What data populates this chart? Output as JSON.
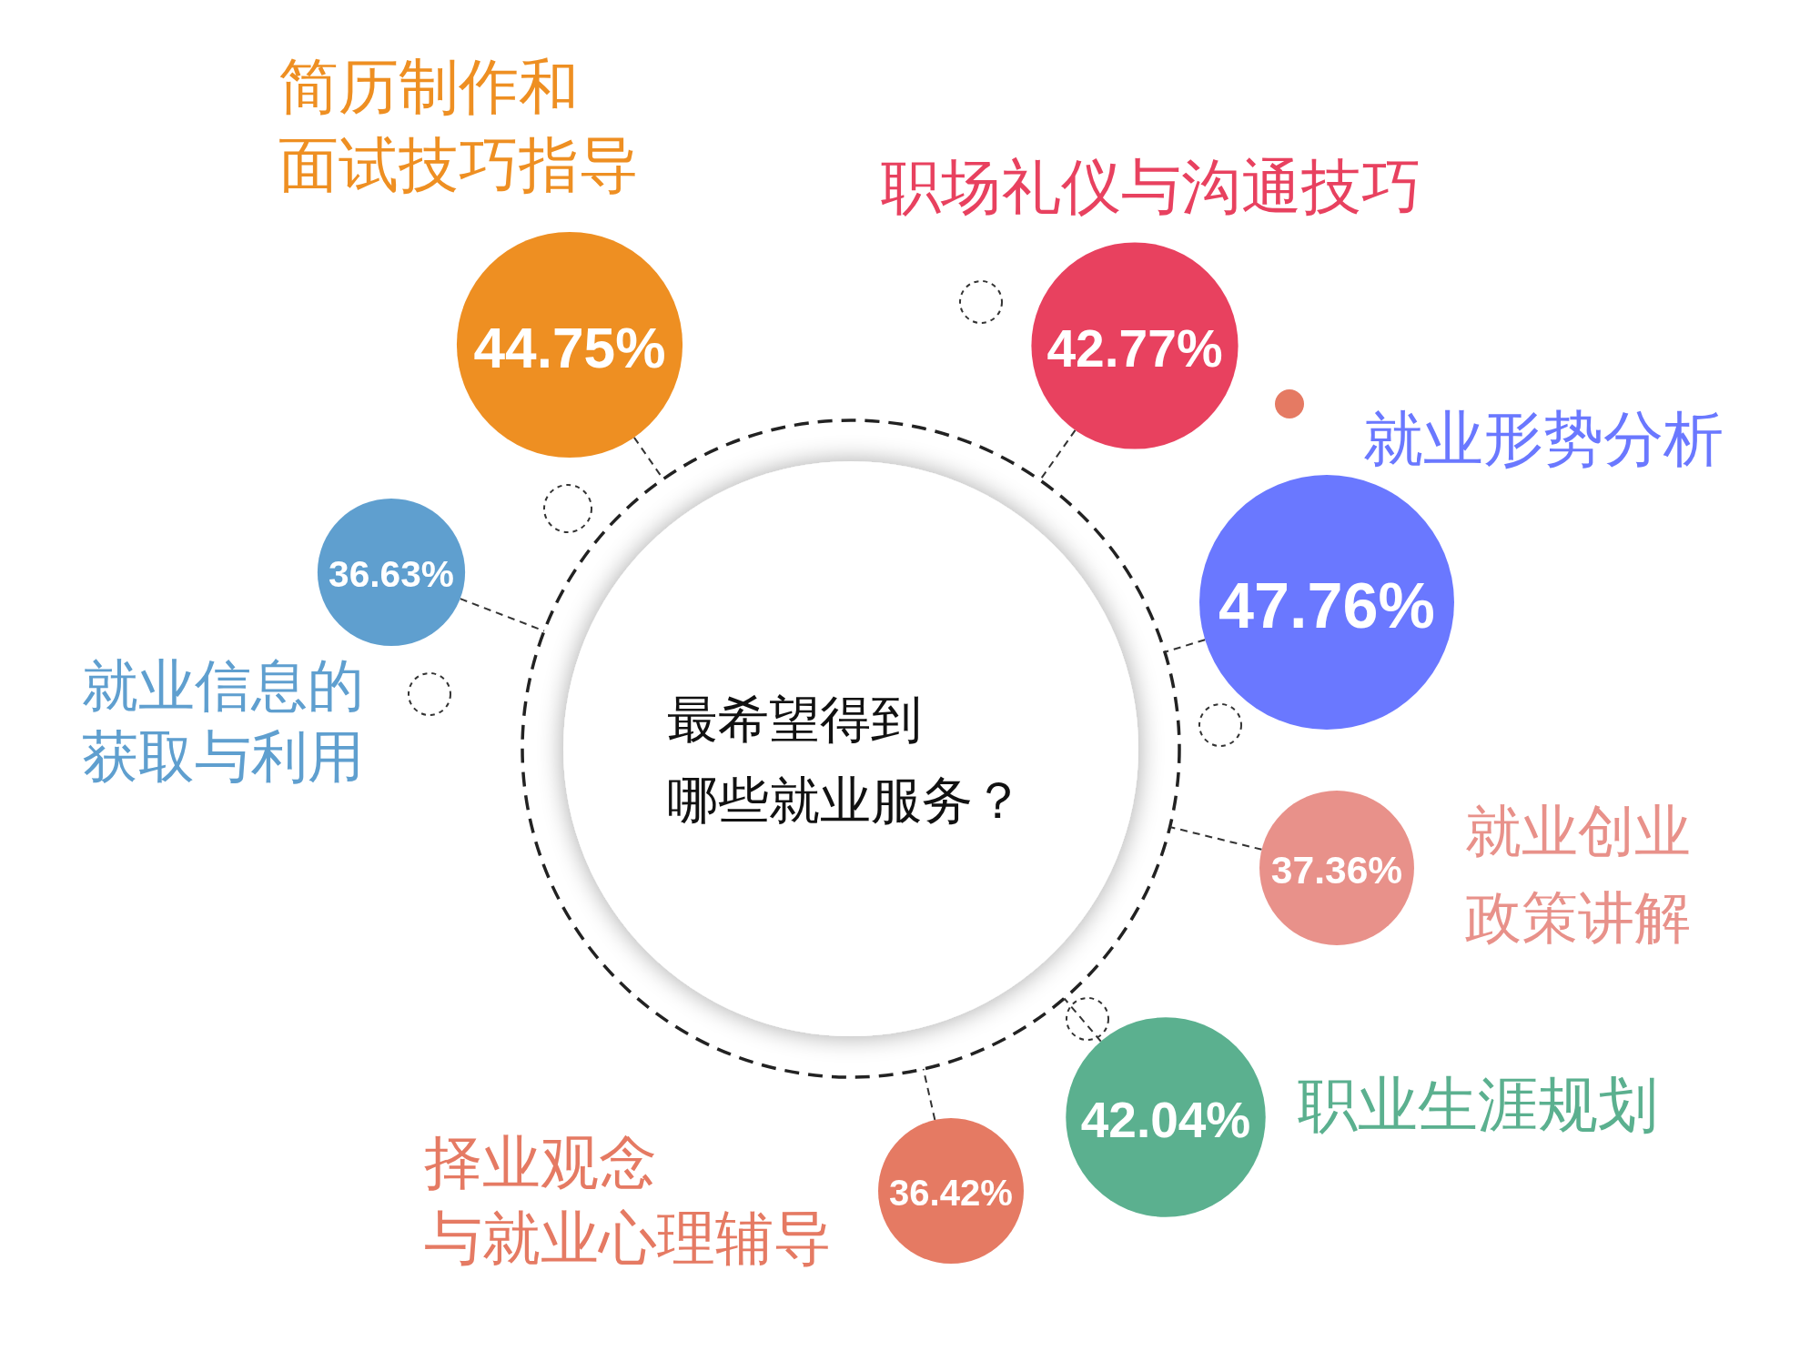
{
  "chart_data": {
    "type": "other",
    "title": "最希望得到哪些就业服务？",
    "categories": [
      "简历制作和面试技巧指导",
      "职场礼仪与沟通技巧",
      "就业形势分析",
      "就业创业政策讲解",
      "职业生涯规划",
      "择业观念与就业心理辅导",
      "就业信息的获取与利用"
    ],
    "values": [
      44.75,
      42.77,
      47.76,
      37.36,
      42.04,
      36.42,
      36.63
    ],
    "value_labels": [
      "44.75%",
      "42.77%",
      "47.76%",
      "37.36%",
      "42.04%",
      "36.42%",
      "36.63%"
    ],
    "colors": [
      "#ee8f22",
      "#e8415f",
      "#6a78ff",
      "#e8918a",
      "#5bb08f",
      "#e57a63",
      "#5f9fcf"
    ]
  }
}
